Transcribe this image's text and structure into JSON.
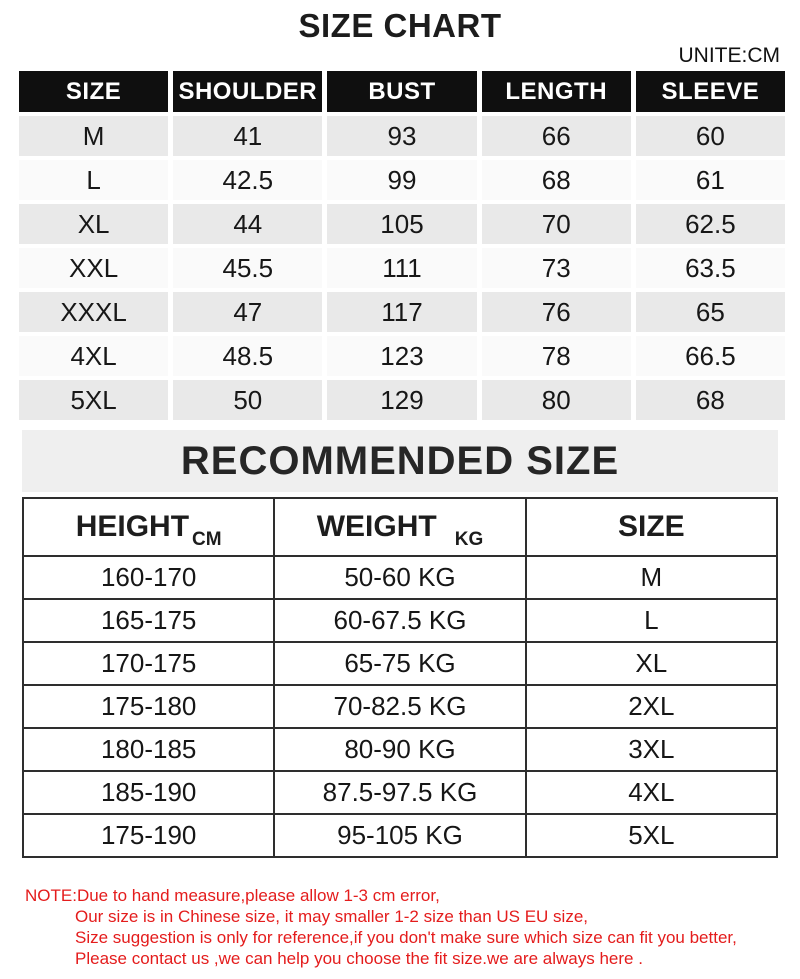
{
  "title": "SIZE CHART",
  "unit_label": "UNITE:CM",
  "size_table": {
    "headers": [
      "SIZE",
      "SHOULDER",
      "BUST",
      "LENGTH",
      "SLEEVE"
    ],
    "rows": [
      [
        "M",
        "41",
        "93",
        "66",
        "60"
      ],
      [
        "L",
        "42.5",
        "99",
        "68",
        "61"
      ],
      [
        "XL",
        "44",
        "105",
        "70",
        "62.5"
      ],
      [
        "XXL",
        "45.5",
        "111",
        "73",
        "63.5"
      ],
      [
        "XXXL",
        "47",
        "117",
        "76",
        "65"
      ],
      [
        "4XL",
        "48.5",
        "123",
        "78",
        "66.5"
      ],
      [
        "5XL",
        "50",
        "129",
        "80",
        "68"
      ]
    ]
  },
  "recommended": {
    "title": "RECOMMENDED SIZE",
    "headers": [
      {
        "label": "HEIGHT",
        "unit": "CM"
      },
      {
        "label": "WEIGHT",
        "unit": "KG"
      },
      {
        "label": "SIZE",
        "unit": ""
      }
    ],
    "rows": [
      [
        "160-170",
        "50-60 KG",
        "M"
      ],
      [
        "165-175",
        "60-67.5 KG",
        "L"
      ],
      [
        "170-175",
        "65-75 KG",
        "XL"
      ],
      [
        "175-180",
        "70-82.5 KG",
        "2XL"
      ],
      [
        "180-185",
        "80-90 KG",
        "3XL"
      ],
      [
        "185-190",
        "87.5-97.5 KG",
        "4XL"
      ],
      [
        "175-190",
        "95-105 KG",
        "5XL"
      ]
    ]
  },
  "note": {
    "lines": [
      "NOTE:Due to hand measure,please allow 1-3 cm error,",
      "Our size is in Chinese size, it may smaller 1-2 size than US EU size,",
      "Size suggestion is only for reference,if you don't make sure which size can fit you better,",
      "Please contact  us ,we can help you choose the fit size.we are  always here ."
    ]
  },
  "colors": {
    "header_bg": "#0f0f0f",
    "row_gray": "#e9e9e9",
    "row_light": "#fafafa",
    "banner_bg": "#efefef",
    "table_border": "#2e2e2e",
    "note_red": "#e41c1c"
  }
}
